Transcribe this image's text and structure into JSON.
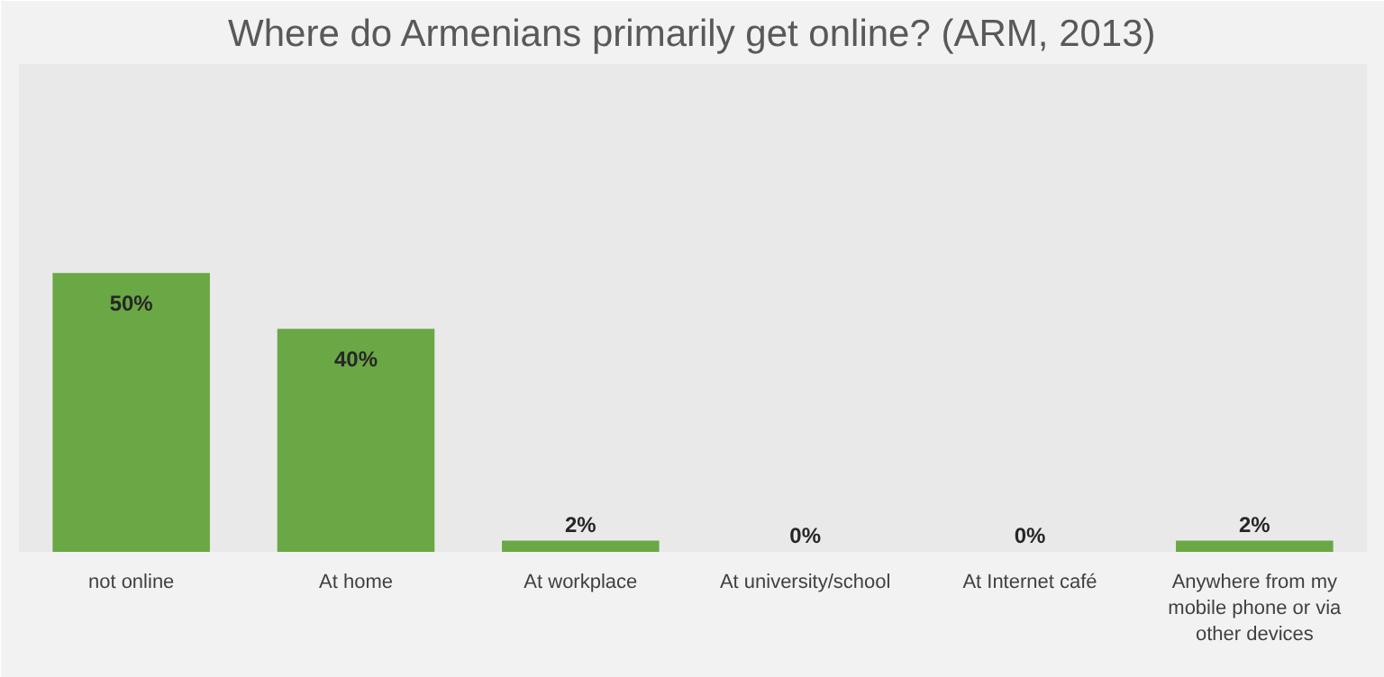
{
  "chart_data": {
    "type": "bar",
    "title": "Where do Armenians primarily get online? (ARM, 2013)",
    "categories": [
      "not online",
      "At home",
      "At workplace",
      "At university/school",
      "At Internet café",
      "Anywhere from my mobile phone or via other devices"
    ],
    "values": [
      50,
      40,
      2,
      0,
      0,
      2
    ],
    "value_labels": [
      "50%",
      "40%",
      "2%",
      "0%",
      "0%",
      "2%"
    ],
    "color": "#6aa745"
  }
}
